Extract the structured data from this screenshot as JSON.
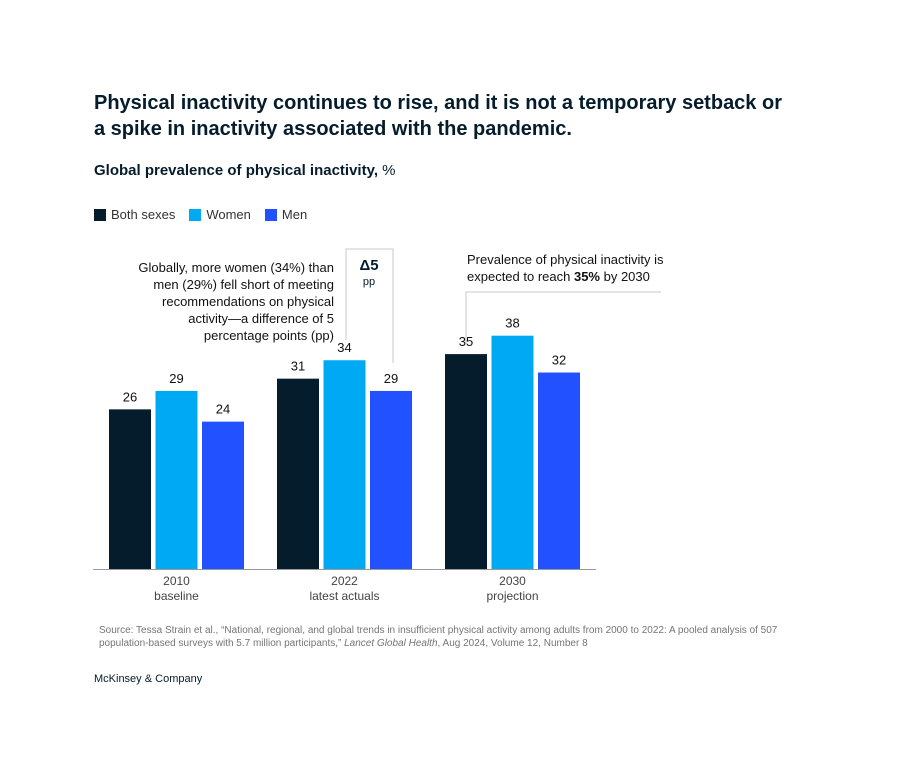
{
  "headline": "Physical inactivity continues to rise, and it is not a temporary setback or a spike in inactivity associated with the pandemic.",
  "subtitle": {
    "main": "Global prevalence of physical inactivity,",
    "unit": " %"
  },
  "colors": {
    "both": "#051c2c",
    "women": "#00a9f4",
    "men": "#2251ff",
    "axis": "#9a9a9a",
    "bracket": "#c8c8c8"
  },
  "chart_data": {
    "type": "bar",
    "categories": [
      [
        "2010",
        "baseline"
      ],
      [
        "2022",
        "latest actuals"
      ],
      [
        "2030",
        "projection"
      ]
    ],
    "series": [
      {
        "name": "Both sexes",
        "values": [
          26,
          31,
          35
        ]
      },
      {
        "name": "Women",
        "values": [
          29,
          34,
          38
        ]
      },
      {
        "name": "Men",
        "values": [
          24,
          29,
          32
        ]
      }
    ],
    "ylim": [
      0,
      50
    ],
    "legend": "top-left",
    "grid": false
  },
  "annotations": {
    "left": "Globally, more women (34%) than men (29%) fell short of meeting recommendations on physical activity—a difference of 5 percentage points (pp)",
    "delta_big": "Δ5",
    "delta_small": "pp",
    "right_prefix": "Prevalence of physical inactivity is expected to reach ",
    "right_bold": "35%",
    "right_suffix": " by 2030"
  },
  "source": {
    "prefix": "Source: Tessa Strain et al., “National, regional, and global trends in insufficient physical activity among adults from 2000 to 2022: A pooled analysis of 507 population-based surveys with 5.7 million participants,” ",
    "journal": "Lancet Global Health",
    "suffix": ", Aug 2024, Volume 12, Number 8"
  },
  "brand": "McKinsey & Company"
}
